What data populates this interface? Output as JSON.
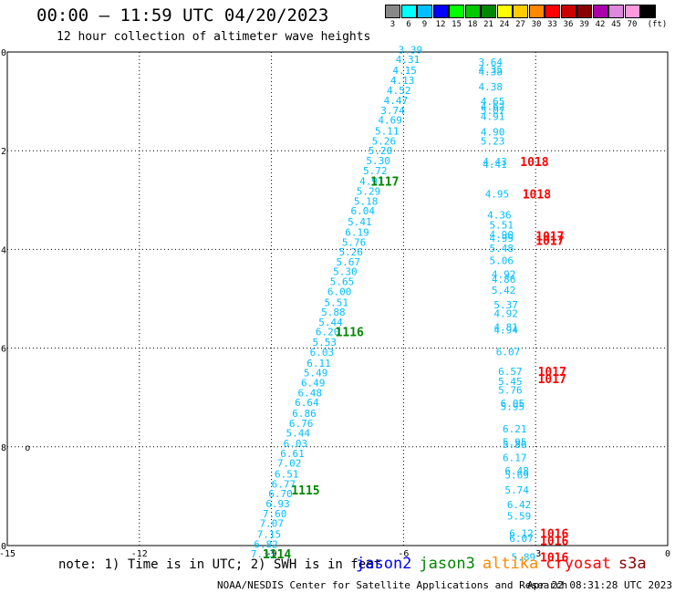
{
  "header": {
    "title": "00:00 – 11:59 UTC 04/20/2023",
    "subtitle": "12 hour collection of altimeter wave heights"
  },
  "legend": {
    "unit": "(ft)",
    "bins": [
      {
        "label": "3",
        "color": "#888888"
      },
      {
        "label": "6",
        "color": "#00ffff"
      },
      {
        "label": "9",
        "color": "#00bfff"
      },
      {
        "label": "12",
        "color": "#0000ff"
      },
      {
        "label": "15",
        "color": "#00ff00"
      },
      {
        "label": "18",
        "color": "#00c800"
      },
      {
        "label": "21",
        "color": "#008800"
      },
      {
        "label": "24",
        "color": "#ffff00"
      },
      {
        "label": "27",
        "color": "#ffcc00"
      },
      {
        "label": "30",
        "color": "#ff8800"
      },
      {
        "label": "33",
        "color": "#ff0000"
      },
      {
        "label": "36",
        "color": "#cc0000"
      },
      {
        "label": "39",
        "color": "#880000"
      },
      {
        "label": "42",
        "color": "#aa00aa"
      },
      {
        "label": "45",
        "color": "#dd88dd"
      },
      {
        "label": "70",
        "color": "#ff99dd"
      },
      {
        "label": "",
        "color": "#000000"
      }
    ]
  },
  "footer": {
    "note": "note: 1) Time is in UTC; 2) SWH is in feet",
    "credit": "NOAA/NESDIS Center for Satellite Applications and Research",
    "timestamp": "Apr 22 08:31:28 UTC 2023",
    "missions": [
      {
        "name": "jason2",
        "color": "#0000ff"
      },
      {
        "name": "jason3",
        "color": "#008800"
      },
      {
        "name": "altika",
        "color": "#ff8800"
      },
      {
        "name": "cryosat",
        "color": "#ff0000"
      },
      {
        "name": "s3a",
        "color": "#880000"
      }
    ]
  },
  "chart_data": {
    "type": "scatter",
    "xlim": [
      -15,
      0
    ],
    "ylim": [
      -10,
      0
    ],
    "xticks": [
      -15,
      -12,
      -9,
      -6,
      -3,
      0
    ],
    "yticks": [
      0,
      -2,
      -4,
      -6,
      -8,
      -10
    ],
    "grid": true,
    "value_color": "#00bfff",
    "track_label_color": "#008800",
    "time_label_color": "#ff0000",
    "small_marker": {
      "x": -14.6,
      "y": -8.0,
      "text": "o"
    },
    "series": [
      {
        "points": [
          {
            "x": -6.12,
            "y": 0.05,
            "t": "3.39"
          },
          {
            "x": -6.18,
            "y": -0.15,
            "t": "4.31"
          },
          {
            "x": -6.25,
            "y": -0.37,
            "t": "4.15"
          },
          {
            "x": -6.3,
            "y": -0.57,
            "t": "4.13"
          },
          {
            "x": -6.38,
            "y": -0.78,
            "t": "4.52"
          },
          {
            "x": -6.45,
            "y": -0.98,
            "t": "4.47"
          },
          {
            "x": -6.52,
            "y": -1.18,
            "t": "3.74"
          },
          {
            "x": -6.58,
            "y": -1.38,
            "t": "4.69"
          },
          {
            "x": -6.65,
            "y": -1.6,
            "t": "5.11"
          },
          {
            "x": -6.72,
            "y": -1.8,
            "t": "5.26"
          },
          {
            "x": -6.8,
            "y": -2.0,
            "t": "5.20"
          },
          {
            "x": -6.85,
            "y": -2.2,
            "t": "5.30"
          },
          {
            "x": -6.92,
            "y": -2.4,
            "t": "5.72"
          },
          {
            "x": -7.0,
            "y": -2.62,
            "t": "4.91"
          },
          {
            "x": -7.07,
            "y": -2.82,
            "t": "5.29"
          },
          {
            "x": -7.13,
            "y": -3.02,
            "t": "5.18"
          },
          {
            "x": -7.2,
            "y": -3.22,
            "t": "6.04"
          },
          {
            "x": -7.27,
            "y": -3.44,
            "t": "5.41"
          },
          {
            "x": -7.33,
            "y": -3.65,
            "t": "6.19"
          },
          {
            "x": -7.4,
            "y": -3.85,
            "t": "5.76"
          },
          {
            "x": -7.47,
            "y": -4.05,
            "t": "5.26"
          },
          {
            "x": -7.53,
            "y": -4.25,
            "t": "5.67"
          },
          {
            "x": -7.6,
            "y": -4.45,
            "t": "5.30"
          },
          {
            "x": -7.67,
            "y": -4.65,
            "t": "5.65"
          },
          {
            "x": -7.73,
            "y": -4.85,
            "t": "6.00"
          },
          {
            "x": -7.8,
            "y": -5.07,
            "t": "5.51"
          },
          {
            "x": -7.87,
            "y": -5.27,
            "t": "5.88"
          },
          {
            "x": -7.93,
            "y": -5.47,
            "t": "5.44"
          },
          {
            "x": -8.0,
            "y": -5.67,
            "t": "6.20"
          },
          {
            "x": -8.07,
            "y": -5.88,
            "t": "5.53"
          },
          {
            "x": -8.13,
            "y": -6.08,
            "t": "6.03"
          },
          {
            "x": -8.2,
            "y": -6.3,
            "t": "6.11"
          },
          {
            "x": -8.27,
            "y": -6.5,
            "t": "5.49"
          },
          {
            "x": -8.33,
            "y": -6.7,
            "t": "6.49"
          },
          {
            "x": -8.4,
            "y": -6.9,
            "t": "6.48"
          },
          {
            "x": -8.47,
            "y": -7.1,
            "t": "6.64"
          },
          {
            "x": -8.53,
            "y": -7.32,
            "t": "6.86"
          },
          {
            "x": -8.6,
            "y": -7.52,
            "t": "6.76"
          },
          {
            "x": -8.67,
            "y": -7.72,
            "t": "5.44"
          },
          {
            "x": -8.73,
            "y": -7.93,
            "t": "6.03"
          },
          {
            "x": -8.8,
            "y": -8.13,
            "t": "6.61"
          },
          {
            "x": -8.87,
            "y": -8.33,
            "t": "7.02"
          },
          {
            "x": -8.93,
            "y": -8.55,
            "t": "6.51"
          },
          {
            "x": -9.0,
            "y": -8.75,
            "t": "6.77"
          },
          {
            "x": -9.07,
            "y": -8.95,
            "t": "6.70"
          },
          {
            "x": -9.13,
            "y": -9.15,
            "t": "6.93"
          },
          {
            "x": -9.2,
            "y": -9.35,
            "t": "7.60"
          },
          {
            "x": -9.27,
            "y": -9.55,
            "t": "7.07"
          },
          {
            "x": -9.33,
            "y": -9.77,
            "t": "7.15"
          },
          {
            "x": -9.4,
            "y": -9.97,
            "t": "6.82"
          },
          {
            "x": -9.47,
            "y": -10.17,
            "t": "7.33"
          }
        ]
      },
      {
        "points": [
          {
            "x": -4.3,
            "y": -0.2,
            "t": "3.64"
          },
          {
            "x": -4.3,
            "y": -0.35,
            "t": "4.35"
          },
          {
            "x": -4.3,
            "y": -0.4,
            "t": "4.38"
          },
          {
            "x": -4.3,
            "y": -0.7,
            "t": "4.38"
          },
          {
            "x": -4.25,
            "y": -1.0,
            "t": "4.65"
          },
          {
            "x": -4.25,
            "y": -1.1,
            "t": "4.62"
          },
          {
            "x": -4.25,
            "y": -1.18,
            "t": "5.07"
          },
          {
            "x": -4.25,
            "y": -1.3,
            "t": "4.91"
          },
          {
            "x": -4.25,
            "y": -1.62,
            "t": "4.90"
          },
          {
            "x": -4.25,
            "y": -1.8,
            "t": "5.23"
          },
          {
            "x": -4.2,
            "y": -2.22,
            "t": "4.43"
          },
          {
            "x": -4.2,
            "y": -2.27,
            "t": "4.41"
          },
          {
            "x": -4.15,
            "y": -2.87,
            "t": "4.95"
          },
          {
            "x": -4.1,
            "y": -3.3,
            "t": "4.36"
          },
          {
            "x": -4.05,
            "y": -3.5,
            "t": "5.51"
          },
          {
            "x": -4.05,
            "y": -3.7,
            "t": "4.90"
          },
          {
            "x": -4.05,
            "y": -3.77,
            "t": "4.99"
          },
          {
            "x": -4.05,
            "y": -3.97,
            "t": "5.48"
          },
          {
            "x": -4.05,
            "y": -4.22,
            "t": "5.06"
          },
          {
            "x": -4.0,
            "y": -4.5,
            "t": "4.92"
          },
          {
            "x": -4.0,
            "y": -4.6,
            "t": "4.86"
          },
          {
            "x": -4.0,
            "y": -4.82,
            "t": "5.42"
          },
          {
            "x": -3.95,
            "y": -5.12,
            "t": "5.37"
          },
          {
            "x": -3.95,
            "y": -5.3,
            "t": "4.92"
          },
          {
            "x": -3.95,
            "y": -5.57,
            "t": "4.81"
          },
          {
            "x": -3.95,
            "y": -5.63,
            "t": "4.94"
          },
          {
            "x": -3.9,
            "y": -6.07,
            "t": "6.07"
          },
          {
            "x": -3.85,
            "y": -6.47,
            "t": "6.57"
          },
          {
            "x": -3.85,
            "y": -6.67,
            "t": "5.45"
          },
          {
            "x": -3.85,
            "y": -6.85,
            "t": "5.76"
          },
          {
            "x": -3.8,
            "y": -7.12,
            "t": "6.05"
          },
          {
            "x": -3.8,
            "y": -7.18,
            "t": "5.95"
          },
          {
            "x": -3.75,
            "y": -7.63,
            "t": "6.21"
          },
          {
            "x": -3.75,
            "y": -7.9,
            "t": "5.95"
          },
          {
            "x": -3.75,
            "y": -7.95,
            "t": "5.86"
          },
          {
            "x": -3.75,
            "y": -8.22,
            "t": "6.17"
          },
          {
            "x": -3.7,
            "y": -8.48,
            "t": "6.48"
          },
          {
            "x": -3.7,
            "y": -8.57,
            "t": "5.69"
          },
          {
            "x": -3.7,
            "y": -8.87,
            "t": "5.74"
          },
          {
            "x": -3.65,
            "y": -9.17,
            "t": "6.42"
          },
          {
            "x": -3.65,
            "y": -9.4,
            "t": "5.59"
          },
          {
            "x": -3.6,
            "y": -9.75,
            "t": "6.12"
          },
          {
            "x": -3.6,
            "y": -9.85,
            "t": "6.07"
          },
          {
            "x": -3.55,
            "y": -10.23,
            "t": "5.89"
          }
        ]
      }
    ],
    "track_labels": [
      {
        "x": -6.75,
        "y": -2.62,
        "t": "1117"
      },
      {
        "x": -7.55,
        "y": -5.67,
        "t": "1116"
      },
      {
        "x": -8.55,
        "y": -8.87,
        "t": "1115"
      },
      {
        "x": -9.2,
        "y": -10.17,
        "t": "1114"
      }
    ],
    "time_labels": [
      {
        "x": -3.35,
        "y": -2.22,
        "t": "1018"
      },
      {
        "x": -3.3,
        "y": -2.87,
        "t": "1018"
      },
      {
        "x": -3.0,
        "y": -3.72,
        "t": "1017"
      },
      {
        "x": -3.0,
        "y": -3.82,
        "t": "1017"
      },
      {
        "x": -2.95,
        "y": -6.47,
        "t": "1017"
      },
      {
        "x": -2.95,
        "y": -6.62,
        "t": "1017"
      },
      {
        "x": -2.9,
        "y": -9.75,
        "t": "1016"
      },
      {
        "x": -2.9,
        "y": -9.9,
        "t": "1016"
      },
      {
        "x": -2.9,
        "y": -10.23,
        "t": "1016"
      }
    ]
  }
}
